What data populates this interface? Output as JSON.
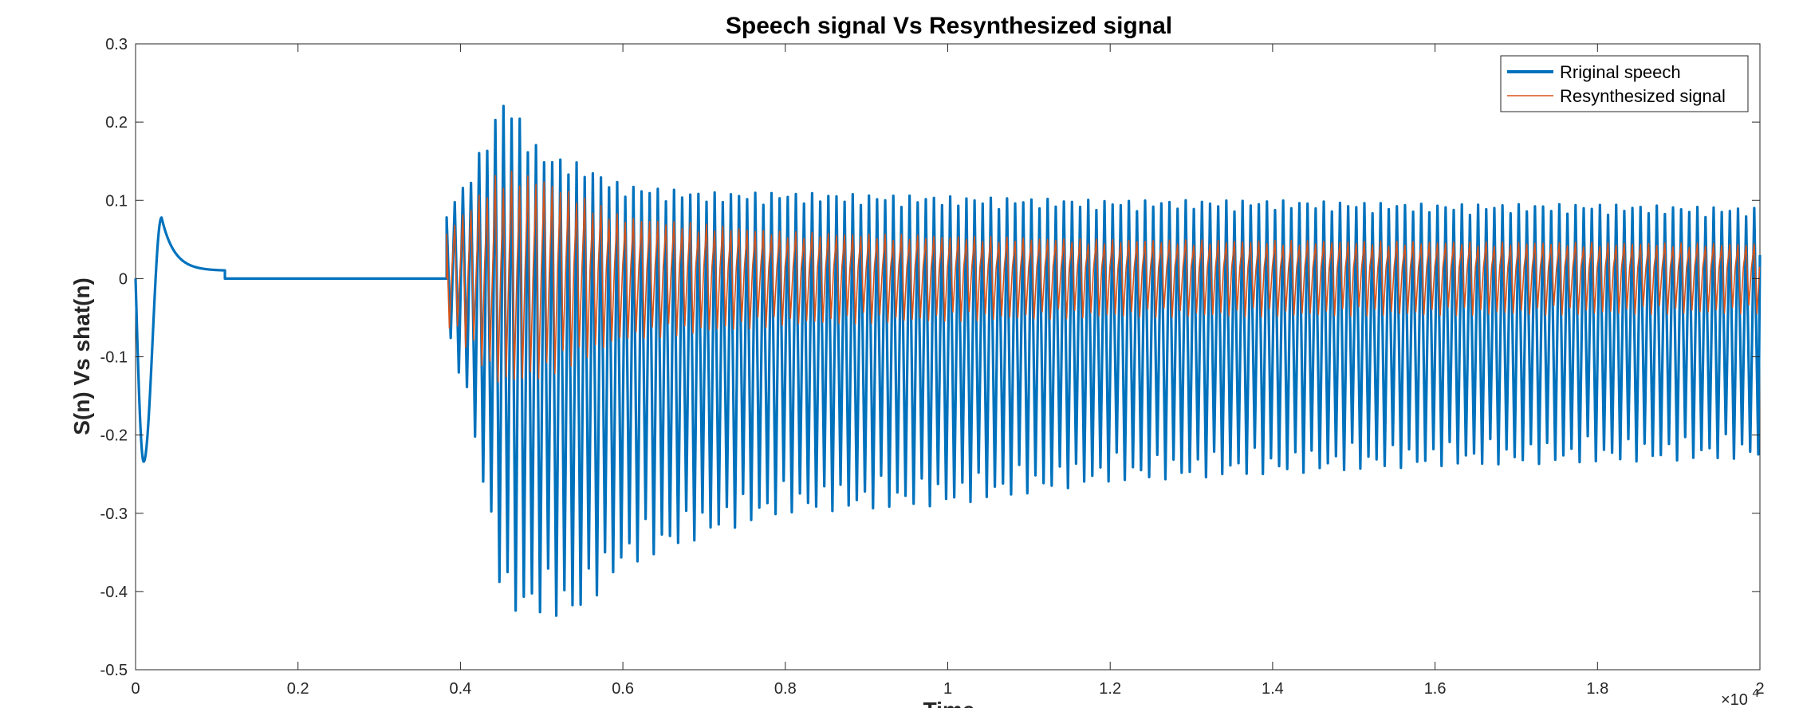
{
  "chart_data": {
    "type": "line",
    "title": "Speech signal Vs Resynthesized signal",
    "xlabel": "Time",
    "ylabel": "S(n) Vs shat(n)",
    "x_exponent_label": "×10",
    "x_exponent_power": "4",
    "xlim": [
      0,
      20000
    ],
    "ylim": [
      -0.5,
      0.3
    ],
    "xticks": [
      0,
      2000,
      4000,
      6000,
      8000,
      10000,
      12000,
      14000,
      16000,
      18000,
      20000
    ],
    "xtick_labels": [
      "0",
      "0.2",
      "0.4",
      "0.6",
      "0.8",
      "1",
      "1.2",
      "1.4",
      "1.6",
      "1.8",
      "2"
    ],
    "yticks": [
      -0.5,
      -0.4,
      -0.3,
      -0.2,
      -0.1,
      0,
      0.1,
      0.2,
      0.3
    ],
    "ytick_labels": [
      "-0.5",
      "-0.4",
      "-0.3",
      "-0.2",
      "-0.1",
      "0",
      "0.1",
      "0.2",
      "0.3"
    ],
    "grid": false,
    "legend": {
      "position": "top-right"
    },
    "series": [
      {
        "name": "Rriginal speech",
        "color": "#0072BD",
        "onset": {
          "start": 0,
          "dip_x": 100,
          "dip_y": -0.234,
          "peak_x": 320,
          "peak_y": 0.078,
          "settle_y": 0.01,
          "zero_x": 1100
        },
        "silence": [
          1100,
          3830
        ],
        "envelope": [
          {
            "x": 3830,
            "max": 0.085,
            "min": -0.07
          },
          {
            "x": 4100,
            "max": 0.13,
            "min": -0.16
          },
          {
            "x": 4550,
            "max": 0.235,
            "min": -0.43
          },
          {
            "x": 5000,
            "max": 0.16,
            "min": -0.43
          },
          {
            "x": 5400,
            "max": 0.15,
            "min": -0.435
          },
          {
            "x": 6000,
            "max": 0.12,
            "min": -0.37
          },
          {
            "x": 7000,
            "max": 0.11,
            "min": -0.33
          },
          {
            "x": 8000,
            "max": 0.11,
            "min": -0.3
          },
          {
            "x": 10000,
            "max": 0.105,
            "min": -0.29
          },
          {
            "x": 12000,
            "max": 0.1,
            "min": -0.26
          },
          {
            "x": 14000,
            "max": 0.1,
            "min": -0.25
          },
          {
            "x": 16000,
            "max": 0.095,
            "min": -0.24
          },
          {
            "x": 18000,
            "max": 0.095,
            "min": -0.235
          },
          {
            "x": 20000,
            "max": 0.09,
            "min": -0.23
          }
        ],
        "pitch_period": 100
      },
      {
        "name": "Resynthesized signal",
        "color": "#D95319",
        "envelope": [
          {
            "x": 3830,
            "max": 0.06,
            "min": -0.06
          },
          {
            "x": 4500,
            "max": 0.14,
            "min": -0.14
          },
          {
            "x": 5000,
            "max": 0.13,
            "min": -0.13
          },
          {
            "x": 6000,
            "max": 0.08,
            "min": -0.08
          },
          {
            "x": 8000,
            "max": 0.06,
            "min": -0.06
          },
          {
            "x": 12000,
            "max": 0.05,
            "min": -0.05
          },
          {
            "x": 20000,
            "max": 0.045,
            "min": -0.045
          }
        ],
        "center_y": 0.015,
        "pitch_period": 100
      }
    ]
  }
}
